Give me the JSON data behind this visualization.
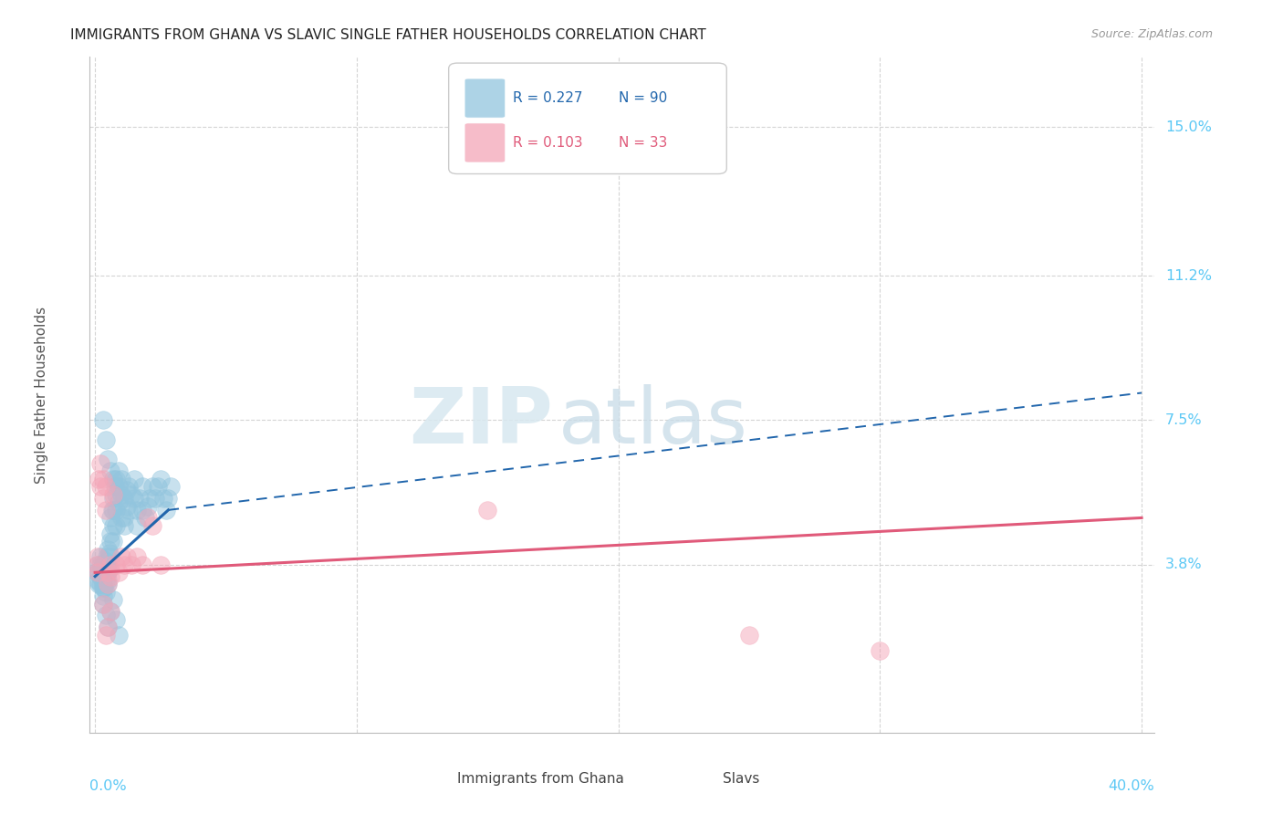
{
  "title": "IMMIGRANTS FROM GHANA VS SLAVIC SINGLE FATHER HOUSEHOLDS CORRELATION CHART",
  "source": "Source: ZipAtlas.com",
  "ylabel": "Single Father Households",
  "ytick_labels": [
    "3.8%",
    "7.5%",
    "11.2%",
    "15.0%"
  ],
  "ytick_values": [
    0.038,
    0.075,
    0.112,
    0.15
  ],
  "xtick_values": [
    0.0,
    0.1,
    0.2,
    0.3,
    0.4
  ],
  "xlim": [
    -0.002,
    0.405
  ],
  "ylim": [
    -0.005,
    0.168
  ],
  "legend_r1": "R = 0.227",
  "legend_n1": "N = 90",
  "legend_r2": "R = 0.103",
  "legend_n2": "N = 33",
  "color_ghana": "#92c5de",
  "color_slavs": "#f4a6b8",
  "color_ghana_line": "#2166ac",
  "color_slavs_line": "#e05a7a",
  "color_axis_labels": "#5bc8f5",
  "watermark_zip": "ZIP",
  "watermark_atlas": "atlas",
  "background_color": "#ffffff",
  "grid_color": "#d0d0d0",
  "ghana_scatter_x": [
    0.0005,
    0.001,
    0.001,
    0.0015,
    0.0015,
    0.002,
    0.002,
    0.002,
    0.002,
    0.0025,
    0.003,
    0.003,
    0.003,
    0.003,
    0.003,
    0.0035,
    0.0035,
    0.0035,
    0.004,
    0.004,
    0.004,
    0.004,
    0.004,
    0.0045,
    0.0045,
    0.005,
    0.005,
    0.005,
    0.005,
    0.005,
    0.0055,
    0.0055,
    0.006,
    0.006,
    0.006,
    0.006,
    0.0065,
    0.007,
    0.007,
    0.007,
    0.007,
    0.0075,
    0.008,
    0.008,
    0.008,
    0.008,
    0.009,
    0.009,
    0.009,
    0.01,
    0.01,
    0.01,
    0.011,
    0.011,
    0.011,
    0.012,
    0.012,
    0.013,
    0.013,
    0.014,
    0.015,
    0.015,
    0.016,
    0.016,
    0.017,
    0.018,
    0.018,
    0.019,
    0.02,
    0.021,
    0.022,
    0.023,
    0.024,
    0.025,
    0.026,
    0.027,
    0.028,
    0.029,
    0.003,
    0.004,
    0.005,
    0.006,
    0.007,
    0.008,
    0.009,
    0.003,
    0.004,
    0.005,
    0.006,
    0.007
  ],
  "ghana_scatter_y": [
    0.036,
    0.034,
    0.038,
    0.033,
    0.036,
    0.035,
    0.038,
    0.04,
    0.033,
    0.037,
    0.036,
    0.038,
    0.033,
    0.032,
    0.03,
    0.038,
    0.035,
    0.032,
    0.038,
    0.036,
    0.034,
    0.039,
    0.031,
    0.04,
    0.037,
    0.042,
    0.038,
    0.036,
    0.034,
    0.033,
    0.041,
    0.037,
    0.05,
    0.046,
    0.044,
    0.04,
    0.052,
    0.055,
    0.052,
    0.048,
    0.044,
    0.058,
    0.06,
    0.056,
    0.052,
    0.048,
    0.062,
    0.058,
    0.054,
    0.06,
    0.056,
    0.05,
    0.055,
    0.05,
    0.048,
    0.057,
    0.053,
    0.058,
    0.052,
    0.056,
    0.06,
    0.055,
    0.052,
    0.048,
    0.055,
    0.058,
    0.052,
    0.05,
    0.053,
    0.055,
    0.058,
    0.055,
    0.058,
    0.06,
    0.055,
    0.052,
    0.055,
    0.058,
    0.028,
    0.025,
    0.022,
    0.026,
    0.029,
    0.024,
    0.02,
    0.075,
    0.07,
    0.065,
    0.062,
    0.06
  ],
  "slavs_scatter_x": [
    0.0005,
    0.001,
    0.001,
    0.0015,
    0.002,
    0.002,
    0.003,
    0.003,
    0.004,
    0.004,
    0.005,
    0.005,
    0.006,
    0.006,
    0.007,
    0.008,
    0.009,
    0.01,
    0.011,
    0.012,
    0.014,
    0.016,
    0.018,
    0.02,
    0.022,
    0.025,
    0.003,
    0.004,
    0.005,
    0.006,
    0.25,
    0.3,
    0.15
  ],
  "slavs_scatter_y": [
    0.038,
    0.04,
    0.036,
    0.06,
    0.064,
    0.058,
    0.06,
    0.055,
    0.058,
    0.052,
    0.036,
    0.033,
    0.038,
    0.035,
    0.056,
    0.038,
    0.036,
    0.04,
    0.038,
    0.04,
    0.038,
    0.04,
    0.038,
    0.05,
    0.048,
    0.038,
    0.028,
    0.02,
    0.022,
    0.026,
    0.02,
    0.016,
    0.052
  ],
  "ghana_trend_x0": 0.0,
  "ghana_trend_y0": 0.035,
  "ghana_trend_x_solid_end": 0.028,
  "ghana_trend_y_solid_end": 0.052,
  "ghana_trend_x1": 0.4,
  "ghana_trend_y1": 0.082,
  "slavs_trend_x0": 0.0,
  "slavs_trend_y0": 0.036,
  "slavs_trend_x1": 0.4,
  "slavs_trend_y1": 0.05
}
